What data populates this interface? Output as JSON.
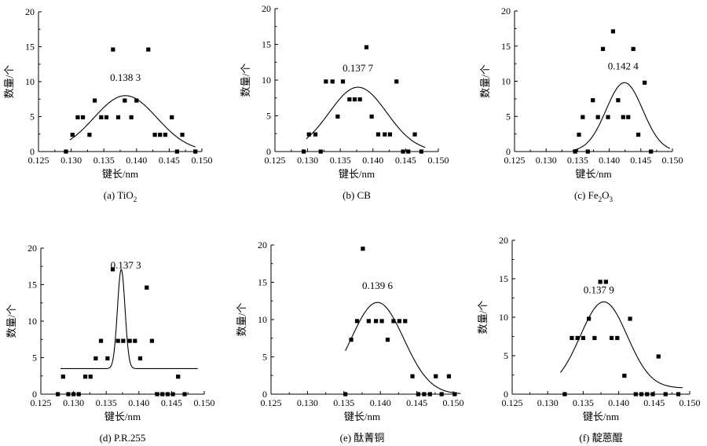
{
  "chart_data": [
    {
      "type": "scatter",
      "caption": "(a) TiO",
      "caption_sub": "2",
      "caption_suffix": "",
      "xlabel": "键长/nm",
      "ylabel": "数量/个",
      "xlim": [
        0.125,
        0.15
      ],
      "ylim": [
        0,
        20
      ],
      "xticks": [
        "0.125",
        "0.130",
        "0.135",
        "0.140",
        "0.145",
        "0.150"
      ],
      "yticks": [
        "0",
        "5",
        "10",
        "15",
        "20"
      ],
      "peak_label": "0.138 3",
      "peak_label_pos": [
        0.1383,
        10.1
      ],
      "points": [
        [
          0.1292,
          0
        ],
        [
          0.1302,
          2.4
        ],
        [
          0.131,
          4.9
        ],
        [
          0.1318,
          4.9
        ],
        [
          0.1328,
          2.4
        ],
        [
          0.1336,
          7.3
        ],
        [
          0.1346,
          4.9
        ],
        [
          0.1354,
          4.9
        ],
        [
          0.1364,
          14.6
        ],
        [
          0.1372,
          4.9
        ],
        [
          0.1382,
          7.3
        ],
        [
          0.1392,
          4.9
        ],
        [
          0.14,
          7.3
        ],
        [
          0.1418,
          14.6
        ],
        [
          0.1428,
          2.4
        ],
        [
          0.1436,
          2.4
        ],
        [
          0.1444,
          2.4
        ],
        [
          0.1454,
          4.9
        ],
        [
          0.1462,
          0
        ],
        [
          0.147,
          2.4
        ],
        [
          0.149,
          0
        ]
      ],
      "fit": {
        "baseline": 0,
        "amplitude": 8.0,
        "center": 0.1383,
        "sigma": 0.0048,
        "x_range": [
          0.1298,
          0.149
        ]
      }
    },
    {
      "type": "scatter",
      "caption": "(b) CB",
      "caption_sub": "",
      "caption_suffix": "",
      "xlabel": "键长/nm",
      "ylabel": "数量/个",
      "xlim": [
        0.125,
        0.15
      ],
      "ylim": [
        0,
        20
      ],
      "xticks": [
        "0.125",
        "0.130",
        "0.135",
        "0.140",
        "0.145",
        "0.150"
      ],
      "yticks": [
        "0",
        "5",
        "10",
        "15",
        "20"
      ],
      "peak_label": "0.137 7",
      "peak_label_pos": [
        0.1377,
        11.2
      ],
      "points": [
        [
          0.1294,
          0
        ],
        [
          0.1302,
          2.4
        ],
        [
          0.1312,
          2.4
        ],
        [
          0.132,
          0
        ],
        [
          0.1328,
          9.8
        ],
        [
          0.1338,
          9.8
        ],
        [
          0.1346,
          4.9
        ],
        [
          0.1354,
          9.8
        ],
        [
          0.1364,
          7.3
        ],
        [
          0.1372,
          7.3
        ],
        [
          0.138,
          7.3
        ],
        [
          0.139,
          14.6
        ],
        [
          0.1398,
          4.9
        ],
        [
          0.1408,
          2.4
        ],
        [
          0.1418,
          2.4
        ],
        [
          0.1426,
          2.4
        ],
        [
          0.1436,
          9.8
        ],
        [
          0.1446,
          0
        ],
        [
          0.1454,
          0
        ],
        [
          0.1464,
          2.4
        ],
        [
          0.1474,
          0
        ]
      ],
      "fit": {
        "baseline": 0,
        "amplitude": 9.0,
        "center": 0.1377,
        "sigma": 0.0044,
        "x_range": [
          0.1298,
          0.148
        ]
      }
    },
    {
      "type": "scatter",
      "caption": "(c) Fe",
      "caption_sub": "2",
      "caption_suffix": "O",
      "caption_sub2": "3",
      "xlabel": "键长/nm",
      "ylabel": "数量/个",
      "xlim": [
        0.125,
        0.15
      ],
      "ylim": [
        0,
        20
      ],
      "xticks": [
        "0.125",
        "0.130",
        "0.135",
        "0.140",
        "0.145",
        "0.150"
      ],
      "yticks": [
        "0",
        "5",
        "10",
        "15",
        "20"
      ],
      "peak_label": "0.142 4",
      "peak_label_pos": [
        0.1422,
        11.7
      ],
      "points": [
        [
          0.1346,
          0
        ],
        [
          0.1352,
          2.4
        ],
        [
          0.1358,
          4.9
        ],
        [
          0.1366,
          0
        ],
        [
          0.1374,
          7.3
        ],
        [
          0.1382,
          4.9
        ],
        [
          0.139,
          14.6
        ],
        [
          0.1398,
          4.9
        ],
        [
          0.1406,
          17.1
        ],
        [
          0.1414,
          7.3
        ],
        [
          0.1422,
          4.9
        ],
        [
          0.143,
          4.9
        ],
        [
          0.1438,
          14.6
        ],
        [
          0.1446,
          2.4
        ],
        [
          0.1456,
          9.8
        ],
        [
          0.1466,
          0
        ]
      ],
      "fit": {
        "baseline": 0,
        "amplitude": 9.8,
        "center": 0.1424,
        "sigma": 0.0029,
        "x_range": [
          0.1342,
          0.1496
        ]
      }
    },
    {
      "type": "scatter",
      "caption": "(d) P.R.255",
      "caption_sub": "",
      "caption_suffix": "",
      "xlabel": "键长/nm",
      "ylabel": "数量/个",
      "xlim": [
        0.125,
        0.15
      ],
      "ylim": [
        0,
        20
      ],
      "xticks": [
        "0.125",
        "0.130",
        "0.135",
        "0.140",
        "0.145",
        "0.150"
      ],
      "yticks": [
        "0",
        "5",
        "10",
        "15",
        "20"
      ],
      "peak_label": "0.137 3",
      "peak_label_pos": [
        0.138,
        17.2
      ],
      "points": [
        [
          0.1276,
          0
        ],
        [
          0.1284,
          2.4
        ],
        [
          0.1292,
          0
        ],
        [
          0.13,
          0
        ],
        [
          0.1308,
          0
        ],
        [
          0.1318,
          2.4
        ],
        [
          0.1326,
          2.4
        ],
        [
          0.1334,
          4.9
        ],
        [
          0.1342,
          7.3
        ],
        [
          0.1352,
          4.9
        ],
        [
          0.136,
          17.1
        ],
        [
          0.1368,
          7.3
        ],
        [
          0.1376,
          7.3
        ],
        [
          0.1386,
          7.3
        ],
        [
          0.1394,
          7.3
        ],
        [
          0.1402,
          4.9
        ],
        [
          0.1412,
          14.6
        ],
        [
          0.142,
          7.3
        ],
        [
          0.1428,
          0
        ],
        [
          0.1436,
          0
        ],
        [
          0.1444,
          0
        ],
        [
          0.1452,
          0
        ],
        [
          0.146,
          2.4
        ],
        [
          0.147,
          0
        ]
      ],
      "fit": {
        "baseline": 3.5,
        "amplitude": 13.6,
        "center": 0.1373,
        "sigma": 0.00058,
        "x_range": [
          0.128,
          0.149
        ]
      }
    },
    {
      "type": "scatter",
      "caption": "(e) 酞菁铜",
      "caption_sub": "",
      "caption_suffix": "",
      "xlabel": "键长/nm",
      "ylabel": "数量/个",
      "xlim": [
        0.125,
        0.15
      ],
      "ylim": [
        0,
        20
      ],
      "xticks": [
        "0.125",
        "0.130",
        "0.135",
        "0.140",
        "0.145",
        "0.150"
      ],
      "yticks": [
        "0",
        "5",
        "10",
        "15",
        "20"
      ],
      "peak_label": "0.139 6",
      "peak_label_pos": [
        0.1396,
        14.1
      ],
      "points": [
        [
          0.1352,
          0
        ],
        [
          0.136,
          7.3
        ],
        [
          0.1368,
          9.8
        ],
        [
          0.1376,
          19.5
        ],
        [
          0.1384,
          9.8
        ],
        [
          0.1394,
          9.8
        ],
        [
          0.1402,
          9.8
        ],
        [
          0.141,
          7.3
        ],
        [
          0.1418,
          9.8
        ],
        [
          0.1426,
          9.8
        ],
        [
          0.1434,
          9.8
        ],
        [
          0.1444,
          2.4
        ],
        [
          0.1452,
          0
        ],
        [
          0.146,
          0
        ],
        [
          0.1468,
          0
        ],
        [
          0.1476,
          2.4
        ],
        [
          0.1484,
          0
        ],
        [
          0.1494,
          2.4
        ],
        [
          0.1502,
          0
        ]
      ],
      "fit": {
        "baseline": 0,
        "amplitude": 12.3,
        "center": 0.1396,
        "sigma": 0.0036,
        "x_range": [
          0.1352,
          0.151
        ]
      }
    },
    {
      "type": "scatter",
      "caption": "(f) 靛蒽醌",
      "caption_sub": "",
      "caption_suffix": "",
      "xlabel": "键长/nm",
      "ylabel": "数量/个",
      "xlim": [
        0.125,
        0.15
      ],
      "ylim": [
        0,
        20
      ],
      "xticks": [
        "0.125",
        "0.130",
        "0.135",
        "0.140",
        "0.145",
        "0.150"
      ],
      "yticks": [
        "0",
        "5",
        "10",
        "15",
        "20"
      ],
      "peak_label": "0.137 9",
      "peak_label_pos": [
        0.1372,
        13.1
      ],
      "points": [
        [
          0.1324,
          0
        ],
        [
          0.1334,
          7.3
        ],
        [
          0.1342,
          7.3
        ],
        [
          0.135,
          7.3
        ],
        [
          0.1358,
          9.8
        ],
        [
          0.1366,
          7.3
        ],
        [
          0.1374,
          14.6
        ],
        [
          0.1382,
          14.6
        ],
        [
          0.139,
          7.3
        ],
        [
          0.1398,
          7.3
        ],
        [
          0.1408,
          2.4
        ],
        [
          0.1416,
          9.8
        ],
        [
          0.1424,
          0
        ],
        [
          0.1432,
          0
        ],
        [
          0.144,
          0
        ],
        [
          0.1448,
          0
        ],
        [
          0.1456,
          4.9
        ],
        [
          0.1466,
          0
        ],
        [
          0.1484,
          0
        ]
      ],
      "fit": {
        "baseline": 0.8,
        "amplitude": 11.2,
        "center": 0.1379,
        "sigma": 0.0033,
        "x_range": [
          0.1318,
          0.149
        ]
      }
    }
  ]
}
